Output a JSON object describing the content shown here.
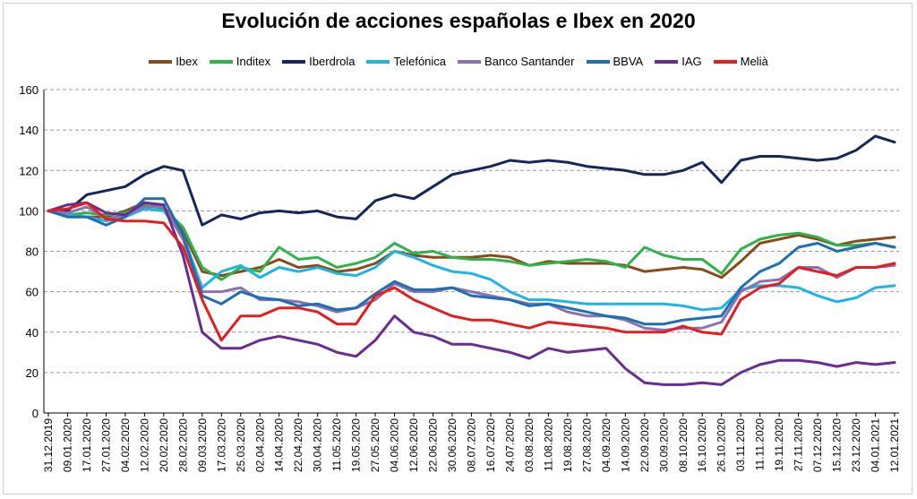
{
  "chart_data": {
    "type": "line",
    "title": "Evolución de acciones españolas e Ibex en 2020",
    "xlabel": "",
    "ylabel": "",
    "ylim": [
      0,
      160
    ],
    "yticks": [
      0,
      20,
      40,
      60,
      80,
      100,
      120,
      140,
      160
    ],
    "grid": true,
    "legend_position": "top",
    "x_tick_labels": [
      "31.12.2019",
      "09.01.2020",
      "17.01.2020",
      "27.01.2020",
      "04.02.2020",
      "12.02.2020",
      "20.02.2020",
      "28.02.2020",
      "09.03.2020",
      "17.03.2020",
      "25.03.2020",
      "02.04.2020",
      "14.04.2020",
      "22.04.2020",
      "30.04.2020",
      "11.05.2020",
      "19.05.2020",
      "27.05.2020",
      "04.06.2020",
      "12.06.2020",
      "22.06.2020",
      "30.06.2020",
      "08.07.2020",
      "16.07.2020",
      "24.07.2020",
      "03.08.2020",
      "11.08.2020",
      "19.08.2020",
      "27.08.2020",
      "04.09.2020",
      "14.09.2020",
      "22.09.2020",
      "30.09.2020",
      "08.10.2020",
      "16.10.2020",
      "26.10.2020",
      "03.11.2020",
      "11.11.2020",
      "19.11.2020",
      "27.11.2020",
      "07.12.2020",
      "15.12.2020",
      "23.12.2020",
      "04.01.2021",
      "12.01.2021"
    ],
    "series": [
      {
        "name": "Ibex",
        "color": "#8B4A1C",
        "values": [
          100,
          97,
          97,
          97,
          100,
          104,
          102,
          90,
          70,
          68,
          70,
          72,
          76,
          72,
          73,
          70,
          71,
          74,
          80,
          78,
          77,
          77,
          77,
          78,
          77,
          73,
          75,
          74,
          74,
          74,
          73,
          70,
          71,
          72,
          71,
          67,
          75,
          84,
          86,
          88,
          86,
          83,
          85,
          86,
          87
        ]
      },
      {
        "name": "Inditex",
        "color": "#2DB34A",
        "values": [
          100,
          98,
          99,
          98,
          99,
          103,
          101,
          92,
          72,
          66,
          72,
          70,
          82,
          76,
          77,
          72,
          74,
          77,
          84,
          79,
          80,
          77,
          76,
          76,
          75,
          73,
          74,
          75,
          76,
          75,
          72,
          82,
          78,
          76,
          76,
          69,
          81,
          86,
          88,
          89,
          87,
          83,
          83,
          84,
          82
        ]
      },
      {
        "name": "Iberdrola",
        "color": "#14275C",
        "values": [
          100,
          100,
          108,
          110,
          112,
          118,
          122,
          120,
          93,
          98,
          96,
          99,
          100,
          99,
          100,
          97,
          96,
          105,
          108,
          106,
          112,
          118,
          120,
          122,
          125,
          124,
          125,
          124,
          122,
          121,
          120,
          118,
          118,
          120,
          124,
          114,
          125,
          127,
          127,
          126,
          125,
          126,
          130,
          137,
          134
        ]
      },
      {
        "name": "Telefónica",
        "color": "#1EB4E6",
        "values": [
          100,
          98,
          97,
          95,
          97,
          101,
          100,
          88,
          62,
          70,
          73,
          67,
          72,
          70,
          72,
          69,
          68,
          72,
          80,
          77,
          73,
          70,
          69,
          66,
          60,
          56,
          56,
          55,
          54,
          54,
          54,
          54,
          54,
          53,
          51,
          52,
          61,
          63,
          63,
          62,
          58,
          55,
          57,
          62,
          63
        ]
      },
      {
        "name": "Banco Santander",
        "color": "#8B72AE",
        "values": [
          100,
          99,
          102,
          96,
          98,
          102,
          102,
          86,
          60,
          60,
          62,
          56,
          56,
          55,
          53,
          50,
          52,
          56,
          64,
          60,
          60,
          62,
          60,
          58,
          56,
          54,
          54,
          50,
          48,
          48,
          46,
          42,
          41,
          42,
          42,
          45,
          60,
          65,
          66,
          72,
          72,
          67,
          72,
          72,
          73
        ]
      },
      {
        "name": "BBVA",
        "color": "#1E6EB4",
        "values": [
          100,
          97,
          97,
          93,
          97,
          106,
          106,
          88,
          58,
          54,
          60,
          57,
          56,
          53,
          54,
          51,
          52,
          59,
          65,
          61,
          61,
          62,
          58,
          57,
          56,
          53,
          54,
          52,
          50,
          48,
          47,
          44,
          44,
          46,
          47,
          48,
          62,
          70,
          74,
          82,
          84,
          80,
          82,
          84,
          82
        ]
      },
      {
        "name": "IAG",
        "color": "#6A2C91",
        "values": [
          100,
          103,
          104,
          99,
          98,
          104,
          103,
          78,
          40,
          32,
          32,
          36,
          38,
          36,
          34,
          30,
          28,
          36,
          48,
          40,
          38,
          34,
          34,
          32,
          30,
          27,
          32,
          30,
          31,
          32,
          22,
          15,
          14,
          14,
          15,
          14,
          20,
          24,
          26,
          26,
          25,
          23,
          25,
          24,
          25
        ]
      },
      {
        "name": "Melià",
        "color": "#E41E1E",
        "values": [
          100,
          101,
          104,
          96,
          95,
          95,
          94,
          82,
          56,
          36,
          48,
          48,
          52,
          52,
          50,
          44,
          44,
          58,
          62,
          56,
          52,
          48,
          46,
          46,
          44,
          42,
          45,
          44,
          43,
          42,
          40,
          40,
          40,
          43,
          40,
          39,
          56,
          62,
          64,
          72,
          70,
          68,
          72,
          72,
          74
        ]
      }
    ]
  }
}
